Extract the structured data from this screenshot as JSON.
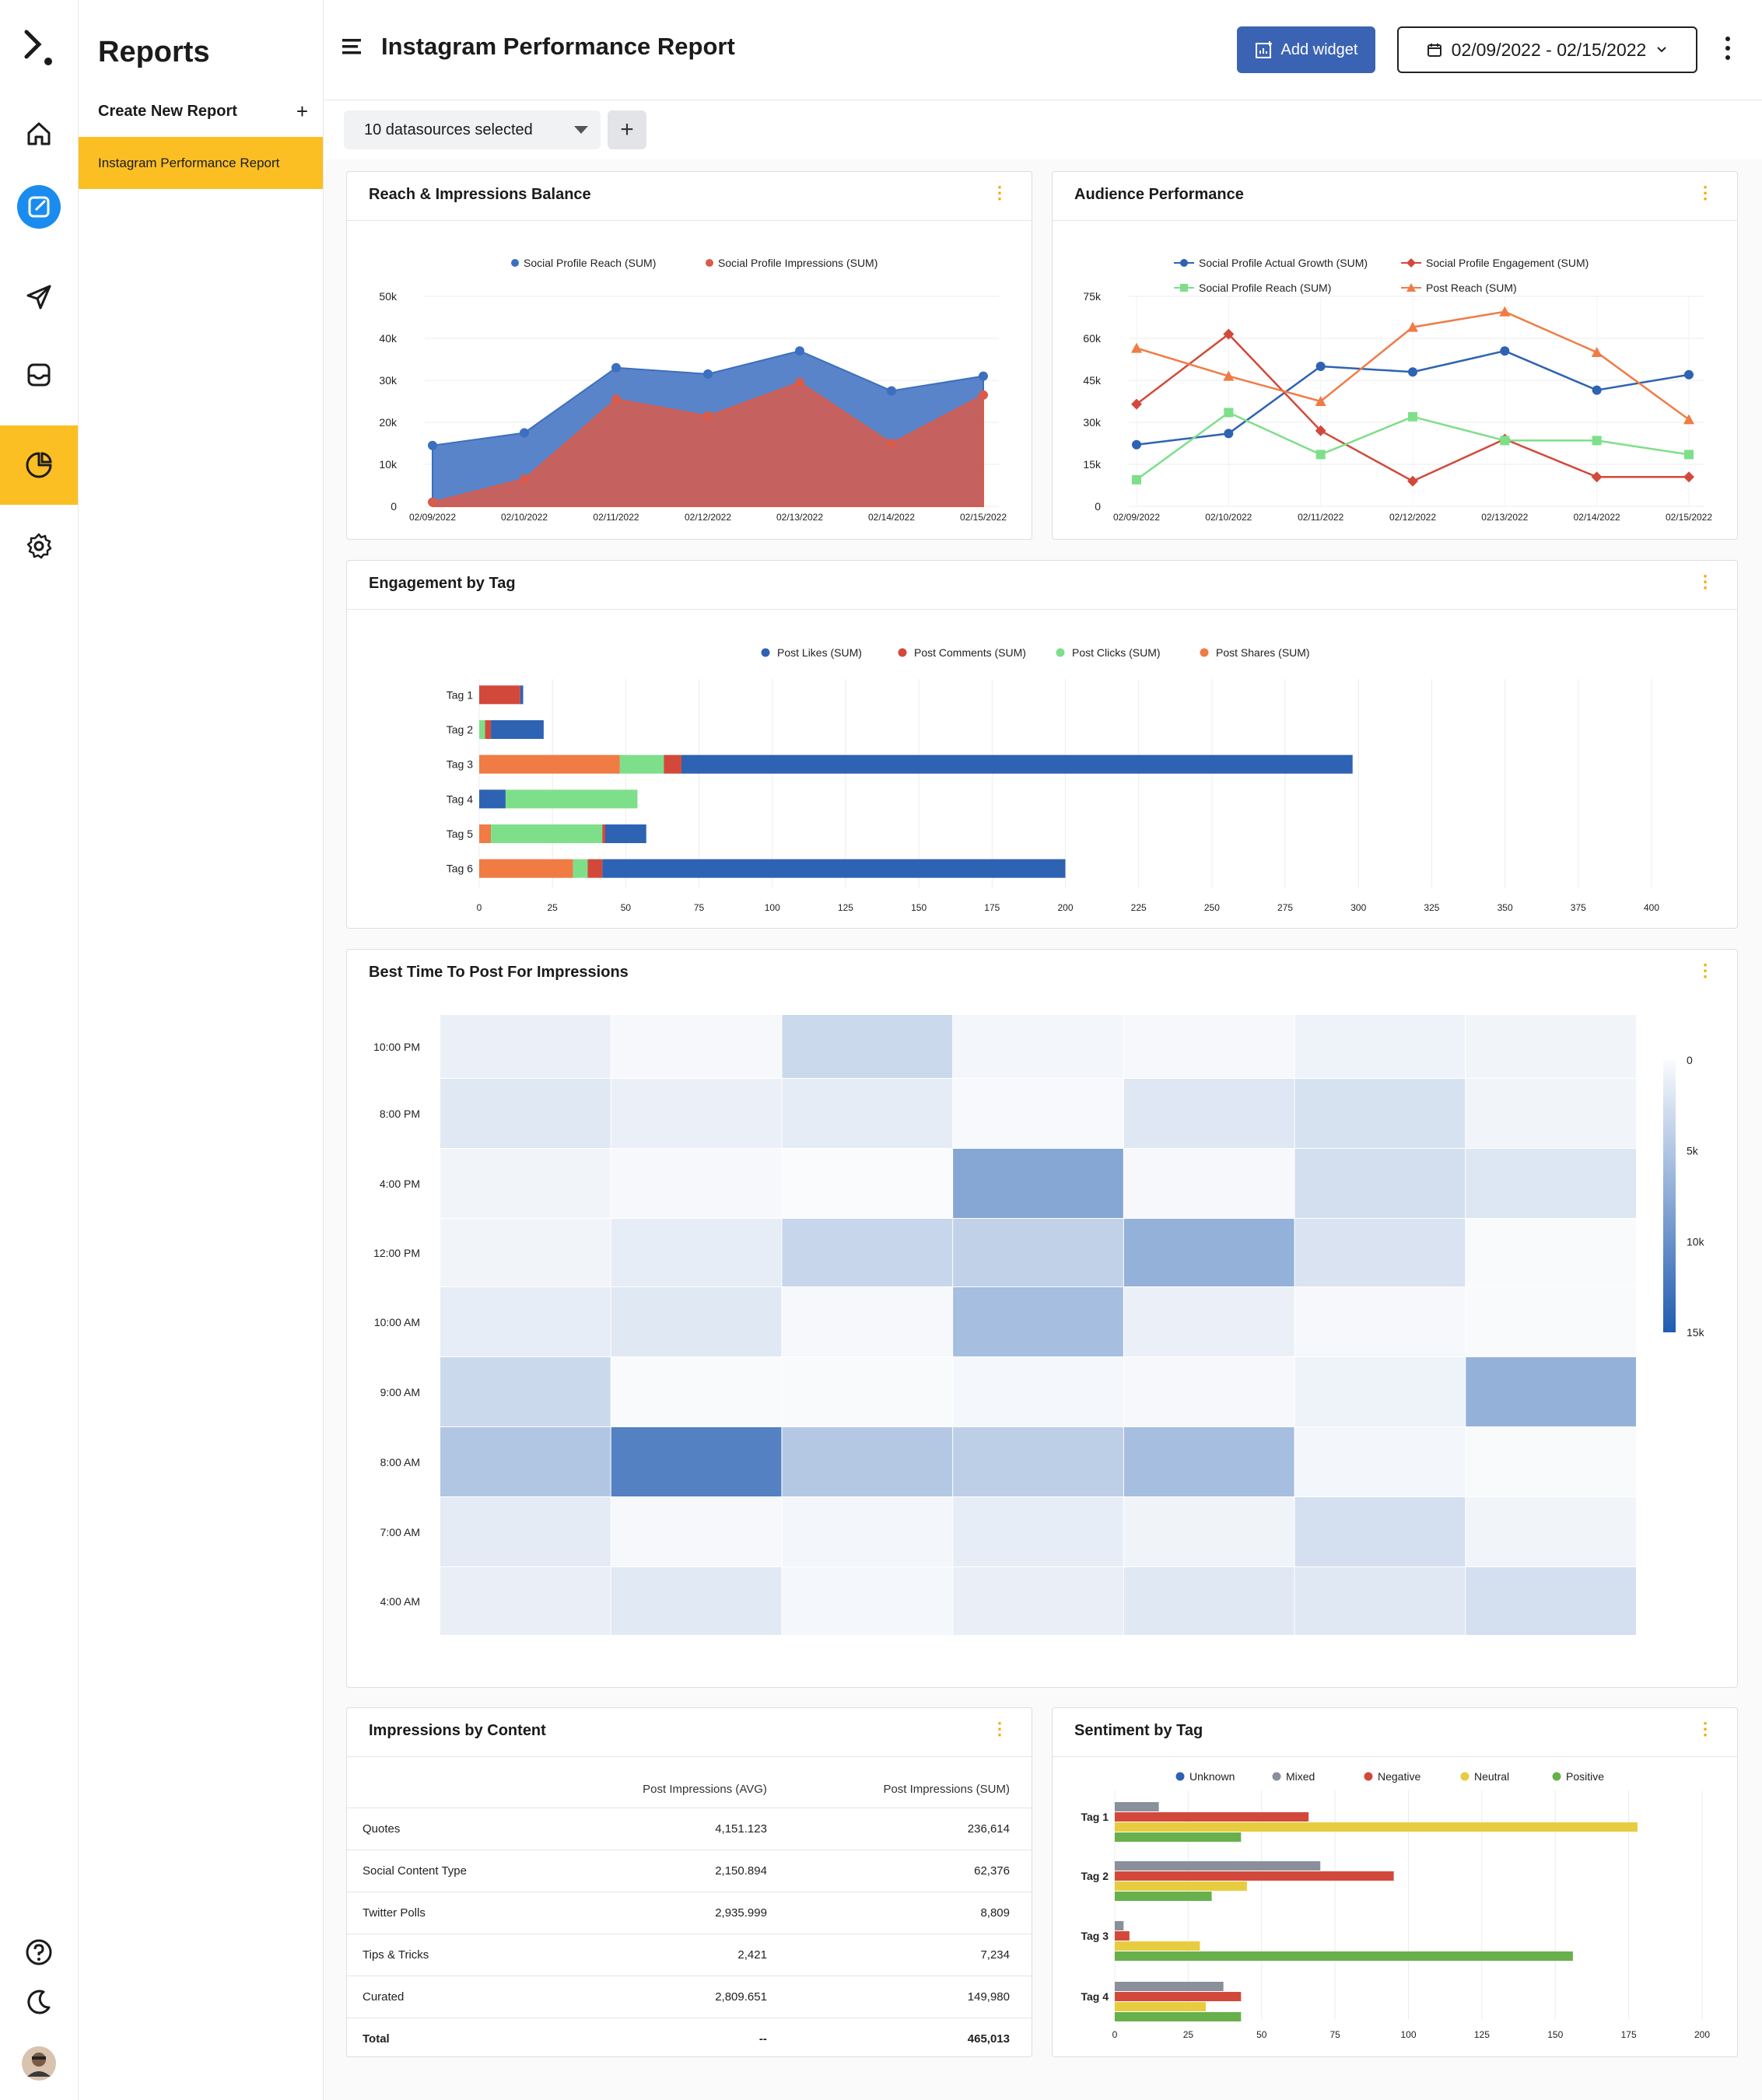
{
  "sidebar": {
    "title": "Reports",
    "create_label": "Create New Report",
    "active_report": "Instagram Performance Report"
  },
  "header": {
    "title": "Instagram Performance Report",
    "add_widget": "Add widget",
    "date_range": "02/09/2022 - 02/15/2022"
  },
  "datasources": {
    "selected": "10 datasources selected"
  },
  "icons": {
    "rail": [
      "logo-icon",
      "home-icon",
      "compose-icon",
      "send-icon",
      "inbox-icon",
      "reports-icon",
      "settings-icon",
      "help-icon",
      "dark-mode-icon",
      "avatar"
    ]
  },
  "colors": {
    "accent": "#fbbf24",
    "primary": "#3b63b3",
    "kebab": "#f2a900"
  },
  "widgets": {
    "reach_title": "Reach & Impressions Balance",
    "audience_title": "Audience Performance",
    "engagement_title": "Engagement by Tag",
    "besttime_title": "Best Time To Post For Impressions",
    "impressions_title": "Impressions by Content",
    "sentiment_title": "Sentiment by Tag"
  },
  "impressions_table": {
    "headers": [
      "",
      "Post Impressions (AVG)",
      "Post Impressions (SUM)"
    ],
    "rows": [
      [
        "Quotes",
        "4,151.123",
        "236,614"
      ],
      [
        "Social Content Type",
        "2,150.894",
        "62,376"
      ],
      [
        "Twitter Polls",
        "2,935.999",
        "8,809"
      ],
      [
        "Tips & Tricks",
        "2,421",
        "7,234"
      ],
      [
        "Curated",
        "2,809.651",
        "149,980"
      ]
    ],
    "total": [
      "Total",
      "--",
      "465,013"
    ]
  },
  "chart_data": [
    {
      "id": "reach",
      "type": "area",
      "title": "Reach & Impressions Balance",
      "x": [
        "02/09/2022",
        "02/10/2022",
        "02/11/2022",
        "02/12/2022",
        "02/13/2022",
        "02/14/2022",
        "02/15/2022"
      ],
      "yticks": [
        "0",
        "10k",
        "20k",
        "30k",
        "40k",
        "50k"
      ],
      "ylim": [
        0,
        50000
      ],
      "legend": "top",
      "series": [
        {
          "name": "Social Profile Reach (SUM)",
          "color": "#3c6fbf",
          "values": [
            14500,
            17500,
            33000,
            31500,
            37000,
            27500,
            31000
          ]
        },
        {
          "name": "Social Profile Impressions (SUM)",
          "color": "#d85b4c",
          "values": [
            1000,
            6500,
            25500,
            21500,
            29500,
            15000,
            26500
          ]
        }
      ]
    },
    {
      "id": "audience",
      "type": "line",
      "title": "Audience Performance",
      "x": [
        "02/09/2022",
        "02/10/2022",
        "02/11/2022",
        "02/12/2022",
        "02/13/2022",
        "02/14/2022",
        "02/15/2022"
      ],
      "yticks": [
        "0",
        "15k",
        "30k",
        "45k",
        "60k",
        "75k"
      ],
      "ylim": [
        0,
        75000
      ],
      "legend": "top",
      "series": [
        {
          "name": "Social Profile Actual Growth (SUM)",
          "color": "#2e62b3",
          "marker": "circle",
          "values": [
            22000,
            26000,
            50000,
            48000,
            55500,
            41500,
            47000
          ]
        },
        {
          "name": "Social Profile Engagement (SUM)",
          "color": "#d2493b",
          "marker": "diamond",
          "values": [
            36500,
            61500,
            27000,
            9000,
            24000,
            10500,
            10500
          ]
        },
        {
          "name": "Social Profile Reach (SUM)",
          "color": "#7edf8a",
          "marker": "square",
          "values": [
            9500,
            33500,
            18500,
            32000,
            23500,
            23500,
            18500
          ]
        },
        {
          "name": "Post Reach (SUM)",
          "color": "#f07b45",
          "marker": "triangle",
          "values": [
            56500,
            46500,
            37500,
            64000,
            69500,
            55000,
            31000
          ]
        }
      ]
    },
    {
      "id": "engagement",
      "type": "bar",
      "orientation": "horizontal",
      "stacked": true,
      "title": "Engagement by Tag",
      "categories": [
        "Tag 1",
        "Tag 2",
        "Tag 3",
        "Tag 4",
        "Tag 5",
        "Tag 6"
      ],
      "xticks": [
        "0",
        "25",
        "50",
        "75",
        "100",
        "125",
        "150",
        "175",
        "200",
        "225",
        "250",
        "275",
        "300",
        "325",
        "350",
        "375",
        "400"
      ],
      "xlim": [
        0,
        400
      ],
      "legend": "top",
      "series": [
        {
          "name": "Post Shares (SUM)",
          "color": "#f07b45",
          "values": [
            0,
            0,
            48,
            0,
            4,
            32
          ]
        },
        {
          "name": "Post Clicks (SUM)",
          "color": "#7edf8a",
          "values": [
            0,
            2,
            15,
            0,
            38,
            5
          ]
        },
        {
          "name": "Post Comments (SUM)",
          "color": "#d2493b",
          "values": [
            14,
            2,
            6,
            0,
            1,
            5
          ]
        },
        {
          "name": "Post Likes (SUM)",
          "color": "#2e62b3",
          "values": [
            1,
            18,
            229,
            9,
            14,
            158
          ]
        },
        {
          "name": "Post Clicks (SUM)",
          "color": "#7edf8a",
          "values": [
            0,
            0,
            0,
            45,
            0,
            0
          ]
        }
      ],
      "legend_order": [
        {
          "name": "Post Likes (SUM)",
          "color": "#2e62b3"
        },
        {
          "name": "Post Comments (SUM)",
          "color": "#d2493b"
        },
        {
          "name": "Post Clicks (SUM)",
          "color": "#7edf8a"
        },
        {
          "name": "Post Shares (SUM)",
          "color": "#f07b45"
        }
      ]
    },
    {
      "id": "besttime",
      "type": "heatmap",
      "title": "Best Time To Post For Impressions",
      "x": [
        "02/09/2022",
        "02/10/2022",
        "02/11/2022",
        "02/12/2022",
        "02/13/2022",
        "02/14/2022",
        "02/15/2022"
      ],
      "y": [
        "10:00 PM",
        "8:00 PM",
        "4:00 PM",
        "12:00 PM",
        "10:00 AM",
        "9:00 AM",
        "8:00 AM",
        "7:00 AM",
        "4:00 AM"
      ],
      "scale_ticks": [
        "0",
        "5k",
        "10k",
        "15k"
      ],
      "scale_max": 15000,
      "values": [
        [
          1000,
          300,
          3200,
          500,
          300,
          800,
          600
        ],
        [
          1800,
          1000,
          1400,
          200,
          1900,
          2400,
          600
        ],
        [
          600,
          300,
          0,
          8000,
          300,
          2700,
          2000
        ],
        [
          600,
          1300,
          3500,
          4000,
          7000,
          2300,
          100
        ],
        [
          1300,
          1800,
          300,
          5800,
          1000,
          300,
          100
        ],
        [
          3200,
          100,
          100,
          400,
          300,
          800,
          7000
        ],
        [
          5000,
          11500,
          4800,
          4200,
          5800,
          500,
          100
        ],
        [
          1500,
          300,
          500,
          1300,
          700,
          2600,
          600
        ],
        [
          1200,
          1700,
          400,
          1200,
          1800,
          1800,
          2600
        ]
      ]
    },
    {
      "id": "sentiment",
      "type": "bar",
      "orientation": "horizontal",
      "stacked": false,
      "title": "Sentiment by Tag",
      "categories": [
        "Tag 1",
        "Tag 2",
        "Tag 3",
        "Tag 4"
      ],
      "xticks": [
        "0",
        "25",
        "50",
        "75",
        "100",
        "125",
        "150",
        "175",
        "200"
      ],
      "xlim": [
        0,
        200
      ],
      "legend": "top",
      "series": [
        {
          "name": "Unknown",
          "color": "#2e62b3",
          "values": [
            0,
            0,
            0,
            0
          ]
        },
        {
          "name": "Mixed",
          "color": "#8a8f9c",
          "values": [
            15,
            70,
            3,
            37
          ]
        },
        {
          "name": "Negative",
          "color": "#d2493b",
          "values": [
            66,
            95,
            5,
            43
          ]
        },
        {
          "name": "Neutral",
          "color": "#e8cc3f",
          "values": [
            178,
            45,
            29,
            31
          ]
        },
        {
          "name": "Positive",
          "color": "#68b04b",
          "values": [
            43,
            33,
            156,
            43
          ]
        }
      ]
    }
  ]
}
